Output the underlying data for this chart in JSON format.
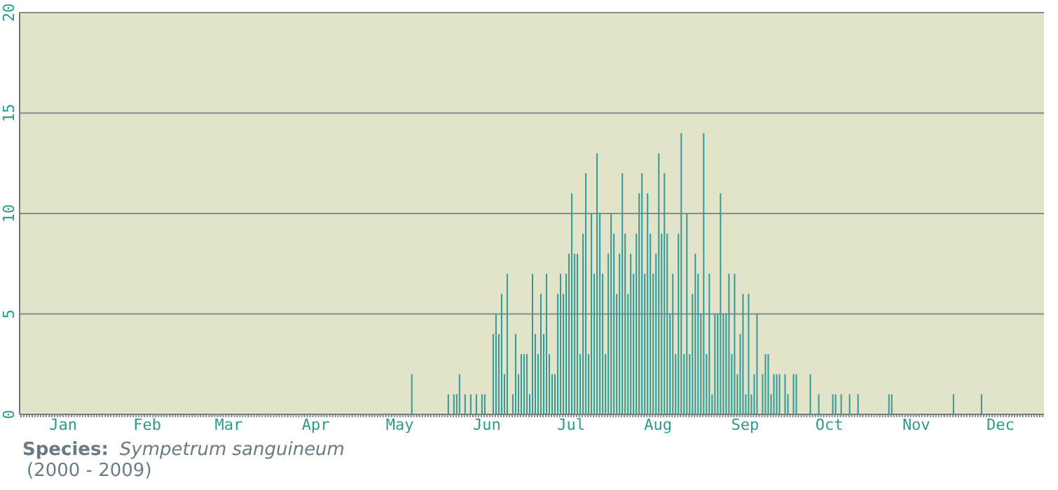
{
  "chart_data": {
    "type": "bar",
    "categories": [
      null,
      null,
      null,
      null,
      null,
      null,
      null,
      null,
      null,
      null,
      null,
      null,
      null,
      null,
      null,
      "Jan",
      null,
      null,
      null,
      null,
      null,
      null,
      null,
      null,
      null,
      null,
      null,
      null,
      null,
      null,
      null,
      null,
      null,
      null,
      null,
      null,
      null,
      null,
      null,
      null,
      null,
      null,
      null,
      null,
      null,
      "Feb",
      null,
      null,
      null,
      null,
      null,
      null,
      null,
      null,
      null,
      null,
      null,
      null,
      null,
      null,
      null,
      null,
      null,
      null,
      null,
      null,
      null,
      null,
      null,
      null,
      null,
      null,
      null,
      null,
      "Mar",
      null,
      null,
      null,
      null,
      null,
      null,
      null,
      null,
      null,
      null,
      null,
      null,
      null,
      null,
      null,
      null,
      null,
      null,
      null,
      null,
      null,
      null,
      null,
      null,
      null,
      null,
      null,
      null,
      null,
      null,
      "Apr",
      null,
      null,
      null,
      null,
      null,
      null,
      null,
      null,
      null,
      null,
      null,
      null,
      null,
      null,
      null,
      null,
      null,
      null,
      null,
      null,
      null,
      null,
      null,
      null,
      null,
      null,
      null,
      null,
      null,
      "May",
      null,
      null,
      null,
      null,
      null,
      null,
      null,
      null,
      null,
      null,
      null,
      null,
      null,
      null,
      null,
      null,
      null,
      null,
      null,
      null,
      null,
      null,
      null,
      null,
      null,
      null,
      null,
      null,
      null,
      null,
      "Jun",
      null,
      null,
      null,
      null,
      null,
      null,
      null,
      null,
      null,
      null,
      null,
      null,
      null,
      null,
      null,
      null,
      null,
      null,
      null,
      null,
      null,
      null,
      null,
      null,
      null,
      null,
      null,
      null,
      null,
      "Jul",
      null,
      null,
      null,
      null,
      null,
      null,
      null,
      null,
      null,
      null,
      null,
      null,
      null,
      null,
      null,
      null,
      null,
      null,
      null,
      null,
      null,
      null,
      null,
      null,
      null,
      null,
      null,
      null,
      null,
      null,
      "Aug",
      null,
      null,
      null,
      null,
      null,
      null,
      null,
      null,
      null,
      null,
      null,
      null,
      null,
      null,
      null,
      null,
      null,
      null,
      null,
      null,
      null,
      null,
      null,
      null,
      null,
      null,
      null,
      null,
      null,
      null,
      "Sep",
      null,
      null,
      null,
      null,
      null,
      null,
      null,
      null,
      null,
      null,
      null,
      null,
      null,
      null,
      null,
      null,
      null,
      null,
      null,
      null,
      null,
      null,
      null,
      null,
      null,
      null,
      null,
      null,
      null,
      "Oct",
      null,
      null,
      null,
      null,
      null,
      null,
      null,
      null,
      null,
      null,
      null,
      null,
      null,
      null,
      null,
      null,
      null,
      null,
      null,
      null,
      null,
      null,
      null,
      null,
      null,
      null,
      null,
      null,
      null,
      null,
      "Nov",
      null,
      null,
      null,
      null,
      null,
      null,
      null,
      null,
      null,
      null,
      null,
      null,
      null,
      null,
      null,
      null,
      null,
      null,
      null,
      null,
      null,
      null,
      null,
      null,
      null,
      null,
      null,
      null,
      null,
      "Dec",
      null,
      null,
      null,
      null,
      null,
      null,
      null,
      null,
      null,
      null,
      null,
      null,
      null,
      null,
      null
    ],
    "values": [
      0,
      0,
      0,
      0,
      0,
      0,
      0,
      0,
      0,
      0,
      0,
      0,
      0,
      0,
      0,
      0,
      0,
      0,
      0,
      0,
      0,
      0,
      0,
      0,
      0,
      0,
      0,
      0,
      0,
      0,
      0,
      0,
      0,
      0,
      0,
      0,
      0,
      0,
      0,
      0,
      0,
      0,
      0,
      0,
      0,
      0,
      0,
      0,
      0,
      0,
      0,
      0,
      0,
      0,
      0,
      0,
      0,
      0,
      0,
      0,
      0,
      0,
      0,
      0,
      0,
      0,
      0,
      0,
      0,
      0,
      0,
      0,
      0,
      0,
      0,
      0,
      0,
      0,
      0,
      0,
      0,
      0,
      0,
      0,
      0,
      0,
      0,
      0,
      0,
      0,
      0,
      0,
      0,
      0,
      0,
      0,
      0,
      0,
      0,
      0,
      0,
      0,
      0,
      0,
      0,
      0,
      0,
      0,
      0,
      0,
      0,
      0,
      0,
      0,
      0,
      0,
      0,
      0,
      0,
      0,
      0,
      0,
      0,
      0,
      0,
      0,
      0,
      0,
      0,
      0,
      0,
      0,
      0,
      0,
      0,
      0,
      0,
      0,
      0,
      2,
      0,
      0,
      0,
      0,
      0,
      0,
      0,
      0,
      0,
      0,
      0,
      0,
      1,
      0,
      1,
      1,
      2,
      0,
      1,
      0,
      1,
      0,
      1,
      0,
      1,
      1,
      0,
      0,
      4,
      5,
      4,
      6,
      2,
      7,
      0,
      1,
      4,
      2,
      3,
      3,
      3,
      1,
      7,
      4,
      3,
      6,
      4,
      7,
      3,
      2,
      2,
      6,
      7,
      6,
      7,
      8,
      11,
      8,
      8,
      3,
      9,
      12,
      3,
      10,
      7,
      13,
      10,
      7,
      3,
      8,
      10,
      9,
      6,
      8,
      12,
      9,
      6,
      8,
      7,
      9,
      11,
      12,
      7,
      11,
      9,
      7,
      8,
      13,
      9,
      12,
      9,
      5,
      7,
      3,
      9,
      14,
      3,
      10,
      3,
      6,
      8,
      7,
      5,
      14,
      3,
      7,
      1,
      5,
      5,
      11,
      5,
      5,
      7,
      3,
      7,
      2,
      4,
      6,
      1,
      6,
      1,
      2,
      5,
      0,
      2,
      3,
      3,
      1,
      2,
      2,
      2,
      0,
      2,
      1,
      0,
      2,
      2,
      0,
      0,
      0,
      0,
      2,
      0,
      0,
      1,
      0,
      0,
      0,
      0,
      1,
      1,
      0,
      1,
      0,
      0,
      1,
      0,
      0,
      1,
      0,
      0,
      0,
      0,
      0,
      0,
      0,
      0,
      0,
      0,
      1,
      1,
      0,
      0,
      0,
      0,
      0,
      0,
      0,
      0,
      0,
      0,
      0,
      0,
      0,
      0,
      0,
      0,
      0,
      0,
      0,
      0,
      0,
      1,
      0,
      0,
      0,
      0,
      0,
      0,
      0,
      0,
      0,
      1,
      0,
      0,
      0,
      0,
      0,
      0,
      0,
      0,
      0,
      0,
      0,
      0,
      0,
      0,
      0,
      0,
      0,
      0,
      0,
      0,
      0,
      0
    ],
    "color": "#339999",
    "ylim": [
      0,
      20
    ],
    "yticks": [
      0,
      5,
      10,
      15,
      20
    ],
    "grid": "y",
    "annotations": [
      "Species:",
      "Sympetrum sanguineum",
      "(2000 - 2009)"
    ]
  }
}
